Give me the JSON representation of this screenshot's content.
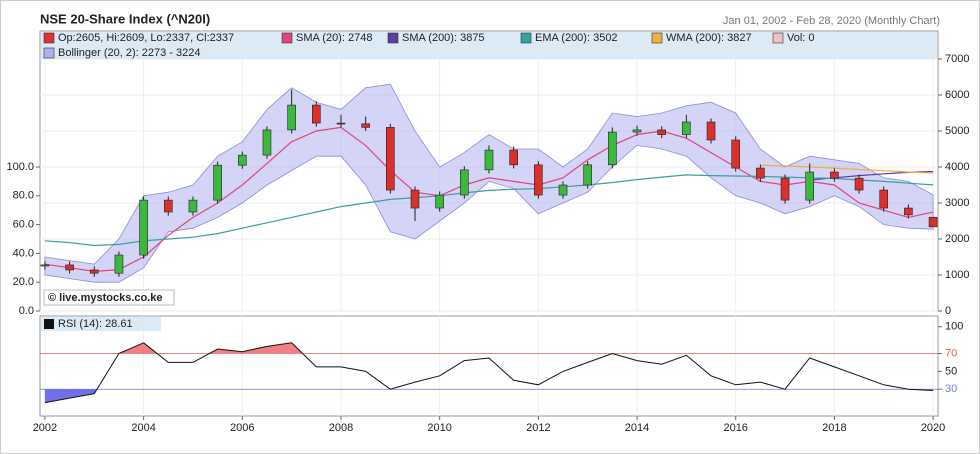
{
  "chart_data": [
    {
      "type": "candlestick",
      "title": "NSE 20-Share Index (^N20I)",
      "subtitle": "Jan 01, 2002 - Feb 28, 2020 (Monthly Chart)",
      "annotation": "© live.mystocks.co.ke",
      "name": "Op:2605, Hi:2609, Lo:2337, Cl:2337",
      "color": "#e03030",
      "up_color": "#3cb83c",
      "down_color": "#d9302c",
      "x": [
        2002.0,
        2002.5,
        2003.0,
        2003.5,
        2004.0,
        2004.5,
        2005.0,
        2005.5,
        2006.0,
        2006.5,
        2007.0,
        2007.5,
        2008.0,
        2008.5,
        2009.0,
        2009.5,
        2010.0,
        2010.5,
        2011.0,
        2011.5,
        2012.0,
        2012.5,
        2013.0,
        2013.5,
        2014.0,
        2014.5,
        2015.0,
        2015.5,
        2016.0,
        2016.5,
        2017.0,
        2017.5,
        2018.0,
        2018.5,
        2019.0,
        2019.5,
        2020.0
      ],
      "open": [
        1250,
        1280,
        1140,
        1050,
        1555,
        3080,
        2750,
        3080,
        4050,
        4330,
        5030,
        5720,
        5220,
        5200,
        5100,
        3360,
        2860,
        3220,
        3920,
        4470,
        4060,
        3220,
        3500,
        4060,
        4970,
        5030,
        4900,
        5250,
        4750,
        3970,
        3690,
        3080,
        3860,
        3690,
        3360,
        2860,
        2605
      ],
      "high": [
        1380,
        1380,
        1240,
        1655,
        3180,
        3180,
        3180,
        4150,
        4430,
        5130,
        6150,
        5820,
        5450,
        5400,
        5200,
        3460,
        3320,
        4020,
        4600,
        4570,
        4160,
        3600,
        4160,
        5100,
        5150,
        5130,
        5450,
        5350,
        4850,
        4070,
        3790,
        4100,
        3960,
        3790,
        3460,
        2960,
        2609
      ],
      "low": [
        1150,
        1040,
        950,
        950,
        1455,
        2650,
        2650,
        2980,
        3950,
        4230,
        4930,
        5120,
        5100,
        5000,
        3260,
        2500,
        2760,
        3120,
        3820,
        3960,
        3120,
        3120,
        3400,
        3960,
        4870,
        4800,
        4800,
        4650,
        3870,
        3590,
        2980,
        2980,
        3590,
        3260,
        2760,
        2570,
        2337
      ],
      "close": [
        1280,
        1140,
        1050,
        1555,
        3080,
        2750,
        3080,
        4050,
        4330,
        5030,
        5720,
        5220,
        5200,
        5100,
        3360,
        2860,
        3220,
        3920,
        4470,
        4060,
        3220,
        3500,
        4060,
        4970,
        5030,
        4900,
        5250,
        4750,
        3970,
        3690,
        3080,
        3860,
        3690,
        3360,
        2860,
        2670,
        2337
      ],
      "series": [
        {
          "name": "SMA (20): 2748",
          "color": "#e0457b",
          "values": [
            1300,
            1200,
            1100,
            1150,
            1500,
            2100,
            2600,
            3000,
            3500,
            4100,
            4700,
            5000,
            5100,
            4600,
            3900,
            3300,
            3200,
            3500,
            3700,
            3600,
            3500,
            3700,
            4200,
            4600,
            4900,
            5000,
            4800,
            4400,
            4000,
            3600,
            3500,
            3600,
            3500,
            3000,
            2800,
            2600,
            2748
          ]
        },
        {
          "name": "SMA (200): 3875",
          "color": "#5b3f9e",
          "values": [
            null,
            null,
            null,
            null,
            null,
            null,
            null,
            null,
            null,
            null,
            null,
            null,
            null,
            null,
            null,
            null,
            null,
            null,
            null,
            null,
            null,
            null,
            null,
            null,
            null,
            null,
            null,
            null,
            null,
            null,
            null,
            3640,
            3700,
            3760,
            3810,
            3850,
            3875
          ]
        },
        {
          "name": "EMA (200): 3502",
          "color": "#3a9f9f",
          "values": [
            1950,
            1900,
            1820,
            1850,
            1950,
            2000,
            2050,
            2150,
            2300,
            2450,
            2600,
            2750,
            2900,
            3000,
            3100,
            3150,
            3200,
            3280,
            3350,
            3380,
            3400,
            3450,
            3500,
            3570,
            3650,
            3720,
            3780,
            3760,
            3750,
            3740,
            3720,
            3700,
            3680,
            3640,
            3600,
            3550,
            3502
          ]
        },
        {
          "name": "WMA (200): 3827",
          "color": "#f0b040",
          "values": [
            null,
            null,
            null,
            null,
            null,
            null,
            null,
            null,
            null,
            null,
            null,
            null,
            null,
            null,
            null,
            null,
            null,
            null,
            null,
            null,
            null,
            null,
            null,
            null,
            null,
            null,
            null,
            null,
            null,
            4050,
            4030,
            4000,
            3970,
            3930,
            3900,
            3860,
            3827
          ]
        },
        {
          "name": "Vol: 0",
          "color": "#f0c0c8"
        }
      ],
      "band": {
        "name": "Bollinger (20, 2): 2273 - 3224",
        "color": "#b0b0f0",
        "upper": [
          1500,
          1400,
          1300,
          2000,
          3200,
          3300,
          3500,
          4300,
          4700,
          5600,
          6200,
          5800,
          5600,
          6200,
          6300,
          5000,
          4000,
          4400,
          4900,
          4500,
          4500,
          4000,
          4500,
          5500,
          5400,
          5500,
          5700,
          5800,
          5500,
          4500,
          4000,
          4300,
          4200,
          4100,
          3700,
          3600,
          3224
        ],
        "lower": [
          1000,
          900,
          800,
          800,
          1200,
          2200,
          2300,
          2600,
          3000,
          3500,
          3900,
          4300,
          4300,
          3500,
          2200,
          2000,
          2500,
          3000,
          3600,
          3400,
          2700,
          3000,
          3300,
          4000,
          4600,
          4500,
          4300,
          3700,
          3200,
          3000,
          2700,
          2900,
          3200,
          2900,
          2400,
          2300,
          2273
        ]
      },
      "xlim": [
        2001.9,
        2020.1
      ],
      "xticks": [
        2002,
        2004,
        2006,
        2008,
        2010,
        2012,
        2014,
        2016,
        2018,
        2020
      ],
      "ylim": [
        0,
        7000
      ],
      "yticks": [
        0,
        1000,
        2000,
        3000,
        4000,
        5000,
        6000,
        7000
      ],
      "y2lim": [
        0,
        175
      ],
      "y2ticks": [
        {
          "value": 0,
          "label": "0.0"
        },
        {
          "value": 20,
          "label": "20.0"
        },
        {
          "value": 40,
          "label": "40.0"
        },
        {
          "value": 60,
          "label": "60.0"
        },
        {
          "value": 80,
          "label": "80.0"
        },
        {
          "value": 100,
          "label": "100.0"
        }
      ],
      "grid": true
    },
    {
      "type": "line",
      "x": [
        2002.0,
        2002.5,
        2003.0,
        2003.5,
        2004.0,
        2004.5,
        2005.0,
        2005.5,
        2006.0,
        2006.5,
        2007.0,
        2007.5,
        2008.0,
        2008.5,
        2009.0,
        2009.5,
        2010.0,
        2010.5,
        2011.0,
        2011.5,
        2012.0,
        2012.5,
        2013.0,
        2013.5,
        2014.0,
        2014.5,
        2015.0,
        2015.5,
        2016.0,
        2016.5,
        2017.0,
        2017.5,
        2018.0,
        2018.5,
        2019.0,
        2019.5,
        2020.0
      ],
      "series": [
        {
          "name": "RSI (14): 28.61",
          "color": "#111111",
          "values": [
            15,
            20,
            25,
            70,
            82,
            60,
            60,
            75,
            72,
            78,
            82,
            55,
            55,
            50,
            30,
            38,
            45,
            62,
            65,
            40,
            35,
            50,
            60,
            70,
            62,
            58,
            68,
            45,
            35,
            38,
            30,
            65,
            55,
            45,
            35,
            30,
            28.61
          ]
        }
      ],
      "overbought_color": "#f08080",
      "oversold_color": "#7070e8",
      "xlim": [
        2001.9,
        2020.1
      ],
      "xticks": [
        2002,
        2004,
        2006,
        2008,
        2010,
        2012,
        2014,
        2016,
        2018,
        2020
      ],
      "ylim": [
        0,
        112
      ],
      "yticks": [
        100,
        70,
        50,
        30
      ]
    }
  ]
}
